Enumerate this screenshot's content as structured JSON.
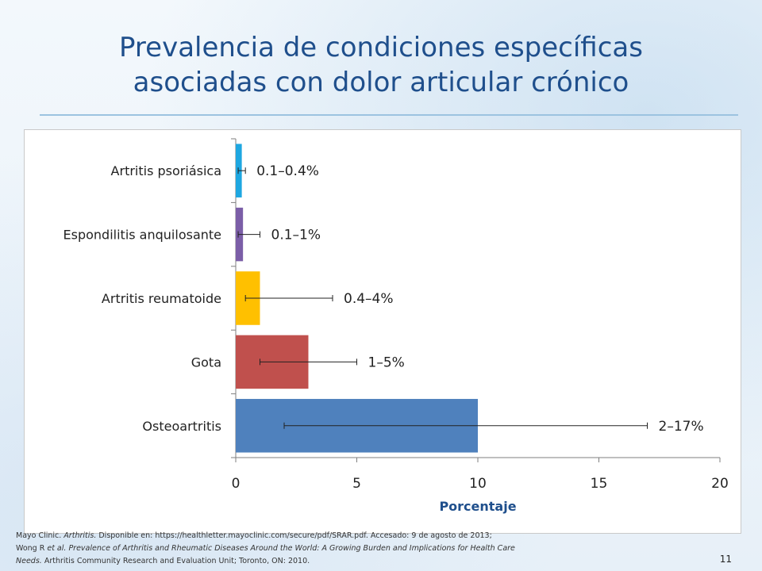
{
  "slide": {
    "title_line1": "Prevalencia de condiciones específicas",
    "title_line2": "asociadas con dolor articular crónico",
    "page_number": "11"
  },
  "references": {
    "line1_author": "Mayo Clinic. ",
    "line1_title": "Arthritis.",
    "line1_rest": " Disponible en: https://healthletter.mayoclinic.com/secure/pdf/SRAR.pdf. Accesado: 9 de agosto de 2013;",
    "line2_author": "Wong R ",
    "line2_etal": "et al.",
    "line2_title": " Prevalence of Arthritis and Rheumatic Diseases Around the World: A Growing Burden and Implications for Health Care",
    "line3_title": "Needs.",
    "line3_rest": " Arthritis Community Research and Evaluation Unit; Toronto, ON: 2010."
  },
  "chart_data": {
    "type": "bar",
    "orientation": "horizontal",
    "categories": [
      "Artritis psoriásica",
      "Espondilitis anquilosante",
      "Artritis reumatoide",
      "Gota",
      "Osteoartritis"
    ],
    "values": [
      0.25,
      0.3,
      1.0,
      3.0,
      10.0
    ],
    "error_low": [
      0.1,
      0.1,
      0.4,
      1.0,
      2.0
    ],
    "error_high": [
      0.4,
      1.0,
      4.0,
      5.0,
      17.0
    ],
    "data_labels": [
      "0.1–0.4%",
      "0.1–1%",
      "0.4–4%",
      "1–5%",
      "2–17%"
    ],
    "colors": [
      "#1ea7e1",
      "#7b5ea7",
      "#ffc000",
      "#c0504d",
      "#4f81bd"
    ],
    "xlabel": "Porcentaje",
    "ylabel": "",
    "xlim": [
      0,
      20
    ],
    "xticks": [
      0,
      5,
      10,
      15,
      20
    ],
    "grid": false
  }
}
